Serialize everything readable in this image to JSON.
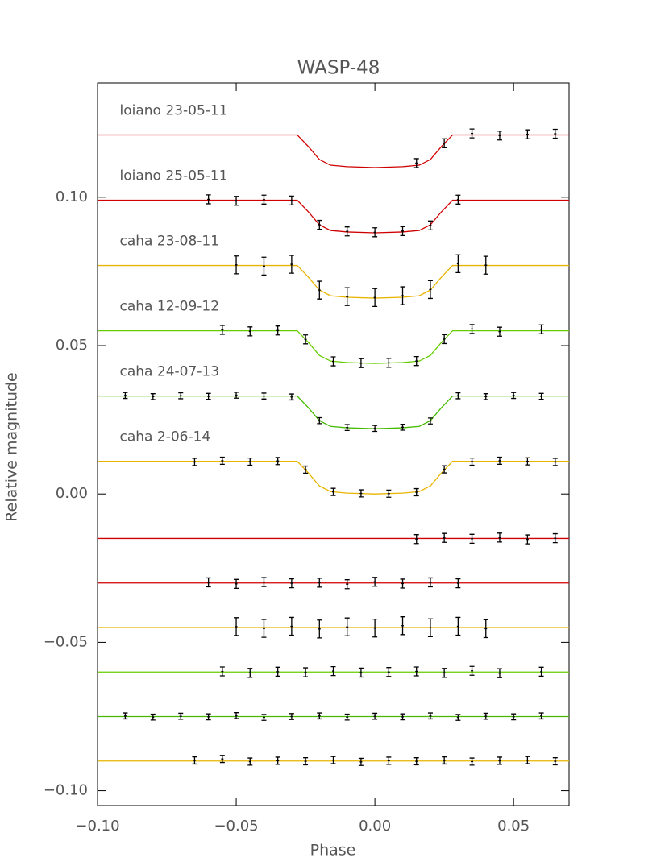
{
  "chart_data": {
    "type": "line",
    "title": "WASP-48",
    "x_label": "Phase",
    "y_label": "Relative magnitude",
    "xlim": [
      -0.1,
      0.07
    ],
    "ylim": [
      -0.105,
      0.1385
    ],
    "xticks": [
      {
        "value": -0.1,
        "label": "−0.10"
      },
      {
        "value": -0.05,
        "label": "−0.05"
      },
      {
        "value": 0,
        "label": "0.00"
      },
      {
        "value": 0.05,
        "label": "0.05"
      }
    ],
    "yticks": [
      {
        "value": -0.1,
        "label": "−0.10"
      },
      {
        "value": -0.05,
        "label": "−0.05"
      },
      {
        "value": 0,
        "label": "0.00"
      },
      {
        "value": 0.05,
        "label": "0.05"
      },
      {
        "value": 0.1,
        "label": "0.10"
      }
    ],
    "model_x": [
      -0.1,
      -0.028,
      -0.024,
      -0.02,
      -0.016,
      -0.01,
      0,
      0.01,
      0.016,
      0.02,
      0.024,
      0.028,
      0.07
    ],
    "series": [
      {
        "name": "loiano 23-05-11",
        "color": "#d00000",
        "error": 0.0015,
        "residual_level": -0.015,
        "model": [
          0.121,
          0.121,
          0.1171,
          0.1127,
          0.1108,
          0.1103,
          0.11,
          0.1103,
          0.1108,
          0.1127,
          0.1171,
          0.121,
          0.121
        ],
        "x": [
          0.015,
          0.025,
          0.035,
          0.045,
          0.055,
          0.065
        ],
        "values": [
          0.1115,
          0.1182,
          0.1215,
          0.1208,
          0.1212,
          0.1214
        ],
        "residuals": [
          -0.0152,
          -0.0148,
          -0.0151,
          -0.0147,
          -0.0153,
          -0.0149
        ]
      },
      {
        "name": "loiano 25-05-11",
        "color": "#d00000",
        "error": 0.0015,
        "residual_level": -0.03,
        "model": [
          0.099,
          0.099,
          0.0951,
          0.0907,
          0.0888,
          0.0883,
          0.088,
          0.0883,
          0.0888,
          0.0907,
          0.0951,
          0.099,
          0.099
        ],
        "x": [
          -0.06,
          -0.05,
          -0.04,
          -0.03,
          -0.02,
          -0.01,
          0,
          0.01,
          0.02,
          0.03
        ],
        "values": [
          0.0993,
          0.0988,
          0.0992,
          0.0989,
          0.0907,
          0.0885,
          0.0882,
          0.0886,
          0.0905,
          0.0992
        ],
        "residuals": [
          -0.0298,
          -0.0303,
          -0.0297,
          -0.0301,
          -0.0299,
          -0.0304,
          -0.0296,
          -0.0302,
          -0.0298,
          -0.0301
        ]
      },
      {
        "name": "caha 23-08-11",
        "color": "#e8b400",
        "error": 0.003,
        "residual_level": -0.045,
        "model": [
          0.077,
          0.077,
          0.0731,
          0.0687,
          0.0668,
          0.0663,
          0.066,
          0.0663,
          0.0668,
          0.0687,
          0.0731,
          0.077,
          0.077
        ],
        "x": [
          -0.05,
          -0.04,
          -0.03,
          -0.02,
          -0.01,
          0,
          0.01,
          0.02,
          0.03,
          0.04
        ],
        "values": [
          0.0772,
          0.0768,
          0.0774,
          0.0687,
          0.0665,
          0.0662,
          0.0668,
          0.0689,
          0.0776,
          0.0771
        ],
        "residuals": [
          -0.0447,
          -0.0453,
          -0.0446,
          -0.0455,
          -0.0448,
          -0.0452,
          -0.0444,
          -0.0451,
          -0.0446,
          -0.0454
        ]
      },
      {
        "name": "caha 12-09-12",
        "color": "#66cc00",
        "error": 0.0015,
        "residual_level": -0.06,
        "model": [
          0.055,
          0.055,
          0.0511,
          0.0467,
          0.0448,
          0.0443,
          0.044,
          0.0443,
          0.0448,
          0.0467,
          0.0511,
          0.055,
          0.055
        ],
        "x": [
          -0.055,
          -0.045,
          -0.035,
          -0.025,
          -0.015,
          -0.005,
          0.005,
          0.015,
          0.025,
          0.035,
          0.045,
          0.06
        ],
        "values": [
          0.0553,
          0.0548,
          0.0551,
          0.0521,
          0.0447,
          0.0441,
          0.0442,
          0.0448,
          0.0522,
          0.0556,
          0.0547,
          0.0555
        ],
        "residuals": [
          -0.0598,
          -0.0603,
          -0.0599,
          -0.0601,
          -0.0597,
          -0.0602,
          -0.06,
          -0.0598,
          -0.0603,
          -0.0596,
          -0.0604,
          -0.0599
        ]
      },
      {
        "name": "caha 24-07-13",
        "color": "#44bb00",
        "error": 0.001,
        "residual_level": -0.075,
        "model": [
          0.033,
          0.033,
          0.0291,
          0.0247,
          0.0228,
          0.0223,
          0.022,
          0.0223,
          0.0228,
          0.0247,
          0.0291,
          0.033,
          0.033
        ],
        "x": [
          -0.09,
          -0.08,
          -0.07,
          -0.06,
          -0.05,
          -0.04,
          -0.03,
          -0.02,
          -0.01,
          0,
          0.01,
          0.02,
          0.03,
          0.04,
          0.05,
          0.06
        ],
        "values": [
          0.0332,
          0.0328,
          0.0331,
          0.0329,
          0.0333,
          0.033,
          0.0327,
          0.0247,
          0.0224,
          0.0221,
          0.0225,
          0.0246,
          0.0331,
          0.0328,
          0.0332,
          0.0329
        ],
        "residuals": [
          -0.0748,
          -0.0752,
          -0.0749,
          -0.0751,
          -0.0747,
          -0.0753,
          -0.075,
          -0.0748,
          -0.0752,
          -0.0749,
          -0.0751,
          -0.0748,
          -0.0753,
          -0.0749,
          -0.0751,
          -0.0748
        ]
      },
      {
        "name": "caha 2-06-14",
        "color": "#e8b400",
        "error": 0.0012,
        "residual_level": -0.09,
        "model": [
          0.011,
          0.011,
          0.0071,
          0.0027,
          0.0008,
          0.0003,
          0,
          0.0003,
          0.0008,
          0.0027,
          0.0071,
          0.011,
          0.011
        ],
        "x": [
          -0.065,
          -0.055,
          -0.045,
          -0.035,
          -0.025,
          -0.015,
          -0.005,
          0.005,
          0.015,
          0.025,
          0.035,
          0.045,
          0.055,
          0.065
        ],
        "values": [
          0.0108,
          0.0112,
          0.0109,
          0.0111,
          0.0082,
          0.0007,
          0.0002,
          0.0001,
          0.0006,
          0.0083,
          0.0109,
          0.0112,
          0.011,
          0.0108
        ],
        "residuals": [
          -0.0898,
          -0.0893,
          -0.0902,
          -0.0899,
          -0.0901,
          -0.0897,
          -0.0903,
          -0.0899,
          -0.0901,
          -0.0898,
          -0.0902,
          -0.0899,
          -0.0897,
          -0.0901
        ]
      }
    ]
  }
}
